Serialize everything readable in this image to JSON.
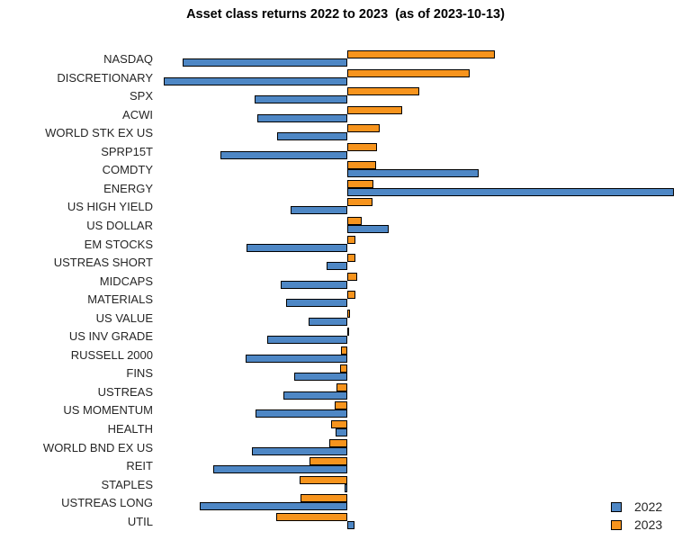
{
  "title": "Asset class returns 2022 to 2023  (as of 2023-10-13)",
  "legend": {
    "items": [
      {
        "label": "2022",
        "color": "#4E87C5"
      },
      {
        "label": "2023",
        "color": "#F7941D"
      }
    ]
  },
  "colors": {
    "bar_2022": "#4E87C5",
    "bar_2023": "#F7941D",
    "bar_border": "#000000",
    "background": "#FFFFFF"
  },
  "chart_data": {
    "type": "bar",
    "orientation": "horizontal",
    "title": "Asset class returns 2022 to 2023  (as of 2023-10-13)",
    "xlabel": "",
    "ylabel": "",
    "unit": "percent",
    "xlim": [
      -38,
      69
    ],
    "grid": false,
    "axis_visible": false,
    "legend_position": "bottom-right",
    "categories": [
      "NASDAQ",
      "DISCRETIONARY",
      "SPX",
      "ACWI",
      "WORLD STK EX US",
      "SPRP15T",
      "COMDTY",
      "ENERGY",
      "US HIGH YIELD",
      "US DOLLAR",
      "EM STOCKS",
      "USTREAS SHORT",
      "MIDCAPS",
      "MATERIALS",
      "US VALUE",
      "US INV GRADE",
      "RUSSELL 2000",
      "FINS",
      "USTREAS",
      "US MOMENTUM",
      "HEALTH",
      "WORLD BND EX US",
      "REIT",
      "STAPLES",
      "USTREAS LONG",
      "UTIL"
    ],
    "series": [
      {
        "name": "2022",
        "color": "#4E87C5",
        "values": [
          -33.0,
          -36.8,
          -18.6,
          -18.0,
          -14.0,
          -25.4,
          26.3,
          65.3,
          -11.3,
          8.3,
          -20.2,
          -4.1,
          -13.3,
          -12.3,
          -7.7,
          -16.0,
          -20.4,
          -10.6,
          -12.8,
          -18.4,
          -2.3,
          -19.1,
          -26.8,
          -0.6,
          -29.5,
          1.4
        ]
      },
      {
        "name": "2023",
        "color": "#F7941D",
        "values": [
          29.5,
          24.5,
          14.4,
          11.0,
          6.5,
          6.0,
          5.8,
          5.2,
          5.0,
          2.9,
          1.6,
          1.6,
          2.0,
          1.6,
          0.5,
          0.1,
          -1.2,
          -1.5,
          -2.2,
          -2.5,
          -3.2,
          -3.6,
          -7.6,
          -9.5,
          -9.4,
          -14.2
        ]
      }
    ]
  }
}
